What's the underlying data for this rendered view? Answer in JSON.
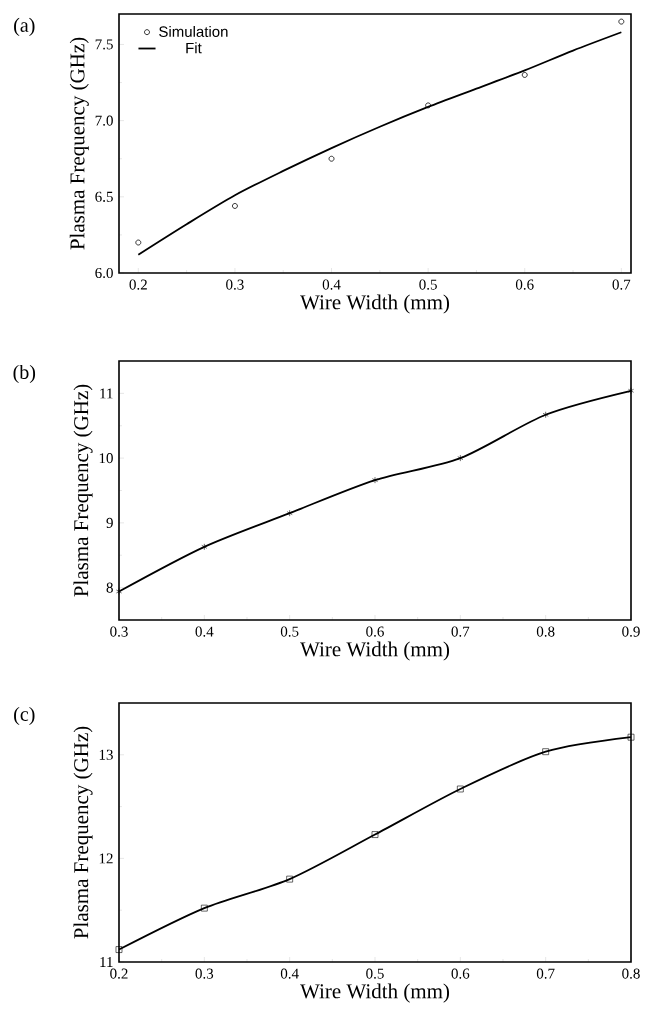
{
  "chart_data": [
    {
      "type": "scatter",
      "xlabel": "Wire Width (mm)",
      "ylabel": "Plasma Frequency (GHz)",
      "annotations": [
        "(a)"
      ],
      "legend": "top left",
      "xlim": [
        0.18,
        0.71
      ],
      "ylim": [
        6.0,
        7.7
      ],
      "xticks": [
        0.2,
        0.3,
        0.4,
        0.5,
        0.6,
        0.7
      ],
      "yticks": [
        {
          "value": 6.0,
          "label": "6.0"
        },
        6.5,
        {
          "value": 7.0,
          "label": "7.0"
        },
        7.5
      ],
      "x": [
        0.2,
        0.3,
        0.4,
        0.5,
        0.6,
        0.7
      ],
      "series": [
        {
          "name": "Simulation",
          "type": "scatter",
          "marker": "circle",
          "color": "#000000",
          "values": [
            6.2,
            6.44,
            6.75,
            7.1,
            7.3,
            7.65
          ]
        },
        {
          "name": "Fit",
          "type": "line",
          "marker": "none",
          "color": "#000000",
          "x": [
            0.2,
            0.25,
            0.3,
            0.35,
            0.4,
            0.45,
            0.5,
            0.55,
            0.6,
            0.65,
            0.7
          ],
          "values": [
            6.12,
            6.32,
            6.51,
            6.67,
            6.82,
            6.96,
            7.09,
            7.21,
            7.33,
            7.46,
            7.58
          ]
        }
      ]
    },
    {
      "type": "line",
      "xlabel": "Wire Width (mm)",
      "ylabel": "Plasma Frequency (GHz)",
      "annotations": [
        "(b)"
      ],
      "marker": "cross",
      "xlim": [
        0.3,
        0.9
      ],
      "ylim": [
        7.5,
        11.5
      ],
      "xticks": [
        0.3,
        0.4,
        0.5,
        0.6,
        0.7,
        0.8,
        0.9
      ],
      "yticks": [
        8,
        9,
        10,
        11
      ],
      "x": [
        0.3,
        0.4,
        0.5,
        0.6,
        0.7,
        0.8,
        0.9
      ],
      "series": [
        {
          "color": "#000000",
          "values": [
            7.94,
            8.63,
            9.15,
            9.66,
            10.0,
            10.67,
            11.04
          ]
        }
      ]
    },
    {
      "type": "line",
      "xlabel": "Wire Width (mm)",
      "ylabel": "Plasma Frequency (GHz)",
      "annotations": [
        "(c)"
      ],
      "marker": "square",
      "xlim": [
        0.2,
        0.8
      ],
      "ylim": [
        11,
        13.5
      ],
      "xticks": [
        0.2,
        0.3,
        0.4,
        0.5,
        0.6,
        0.7,
        0.8
      ],
      "yticks": [
        11,
        12,
        13
      ],
      "x": [
        0.2,
        0.3,
        0.4,
        0.5,
        0.6,
        0.7,
        0.8
      ],
      "series": [
        {
          "color": "#000000",
          "values": [
            11.12,
            11.52,
            11.8,
            12.23,
            12.67,
            13.03,
            13.17
          ]
        }
      ]
    }
  ]
}
